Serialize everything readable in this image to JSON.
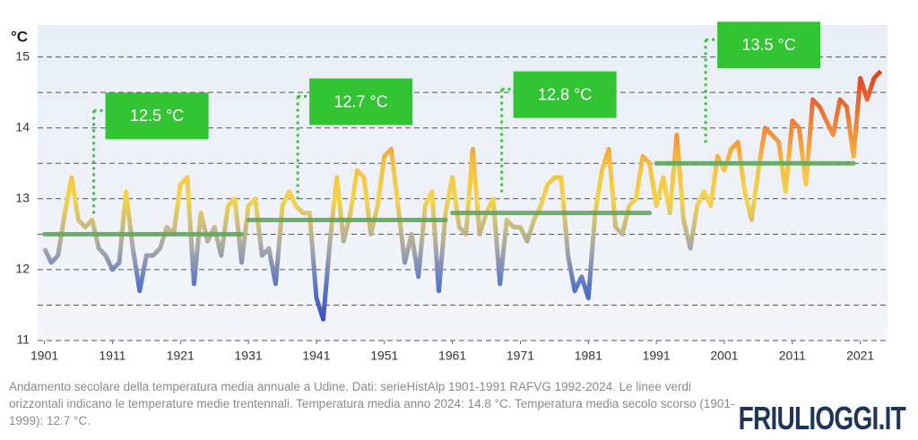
{
  "chart_data": {
    "type": "line",
    "y_unit": "°C",
    "caption": "Andamento secolare della temperatura media annuale a Udine. Dati: serieHistAlp 1901-1991 RAFVG 1992-2024. Le linee verdi orizzontali indicano le temperature medie trentennali. Temperatura media anno 2024: 14.8 °C. Temperatura media secolo scorso (1901-1999): 12.7 °C.",
    "logo": "FRIULIOGGI.IT",
    "x": [
      1901,
      1902,
      1903,
      1904,
      1905,
      1906,
      1907,
      1908,
      1909,
      1910,
      1911,
      1912,
      1913,
      1914,
      1915,
      1916,
      1917,
      1918,
      1919,
      1920,
      1921,
      1922,
      1923,
      1924,
      1925,
      1926,
      1927,
      1928,
      1929,
      1930,
      1931,
      1932,
      1933,
      1934,
      1935,
      1936,
      1937,
      1938,
      1939,
      1940,
      1941,
      1942,
      1943,
      1944,
      1945,
      1946,
      1947,
      1948,
      1949,
      1950,
      1951,
      1952,
      1953,
      1954,
      1955,
      1956,
      1957,
      1958,
      1959,
      1960,
      1961,
      1962,
      1963,
      1964,
      1965,
      1966,
      1967,
      1968,
      1969,
      1970,
      1971,
      1972,
      1973,
      1974,
      1975,
      1976,
      1977,
      1978,
      1979,
      1980,
      1981,
      1982,
      1983,
      1984,
      1985,
      1986,
      1987,
      1988,
      1989,
      1990,
      1991,
      1992,
      1993,
      1994,
      1995,
      1996,
      1997,
      1998,
      1999,
      2000,
      2001,
      2002,
      2003,
      2004,
      2005,
      2006,
      2007,
      2008,
      2009,
      2010,
      2011,
      2012,
      2013,
      2014,
      2015,
      2016,
      2017,
      2018,
      2019,
      2020,
      2021,
      2022,
      2023,
      2024
    ],
    "series": [
      {
        "name": "Temperatura media annuale",
        "values": [
          12.3,
          12.1,
          12.2,
          12.8,
          13.3,
          12.7,
          12.6,
          12.7,
          12.3,
          12.2,
          12.0,
          12.1,
          13.1,
          12.3,
          11.7,
          12.2,
          12.2,
          12.3,
          12.6,
          12.5,
          13.2,
          13.3,
          11.8,
          12.8,
          12.4,
          12.6,
          12.2,
          12.9,
          13.0,
          12.1,
          12.9,
          13.0,
          12.2,
          12.3,
          11.8,
          12.9,
          13.1,
          12.9,
          12.8,
          12.8,
          11.6,
          11.3,
          12.4,
          13.3,
          12.4,
          12.8,
          13.4,
          13.3,
          12.5,
          12.9,
          13.6,
          13.7,
          12.9,
          12.1,
          12.5,
          11.9,
          12.9,
          13.1,
          11.7,
          12.8,
          13.3,
          12.6,
          12.5,
          13.7,
          12.5,
          12.8,
          13.0,
          11.8,
          12.7,
          12.6,
          12.6,
          12.4,
          12.7,
          12.9,
          13.2,
          13.3,
          13.3,
          12.2,
          11.7,
          11.9,
          11.6,
          12.8,
          13.4,
          13.7,
          12.6,
          12.5,
          12.9,
          13.0,
          13.6,
          13.5,
          12.9,
          13.3,
          12.8,
          13.9,
          12.7,
          12.3,
          12.9,
          13.1,
          12.9,
          13.6,
          13.4,
          13.7,
          13.8,
          13.1,
          12.7,
          13.4,
          14.0,
          13.9,
          13.8,
          13.1,
          14.1,
          14.0,
          13.2,
          14.4,
          14.3,
          14.1,
          13.9,
          14.4,
          14.3,
          13.6,
          14.7,
          14.4,
          14.7,
          14.8
        ]
      }
    ],
    "averages": [
      {
        "label": "12.5 °C",
        "value": 12.5,
        "start": 1901,
        "end": 1930
      },
      {
        "label": "12.7 °C",
        "value": 12.7,
        "start": 1931,
        "end": 1960
      },
      {
        "label": "12.8 °C",
        "value": 12.8,
        "start": 1961,
        "end": 1990
      },
      {
        "label": "13.5 °C",
        "value": 13.5,
        "start": 1991,
        "end": 2020
      }
    ],
    "average_color": "#5fa85f",
    "xlim": [
      1900,
      2025
    ],
    "xticks": [
      1901,
      1911,
      1921,
      1931,
      1941,
      1951,
      1961,
      1971,
      1981,
      1991,
      2001,
      2011,
      2021
    ],
    "ylim": [
      11,
      15.45
    ],
    "yticks": [
      11,
      12,
      13,
      14,
      15
    ],
    "minor_yticks": [
      11.5,
      12.5,
      13.5,
      14.5
    ],
    "grid": true
  }
}
